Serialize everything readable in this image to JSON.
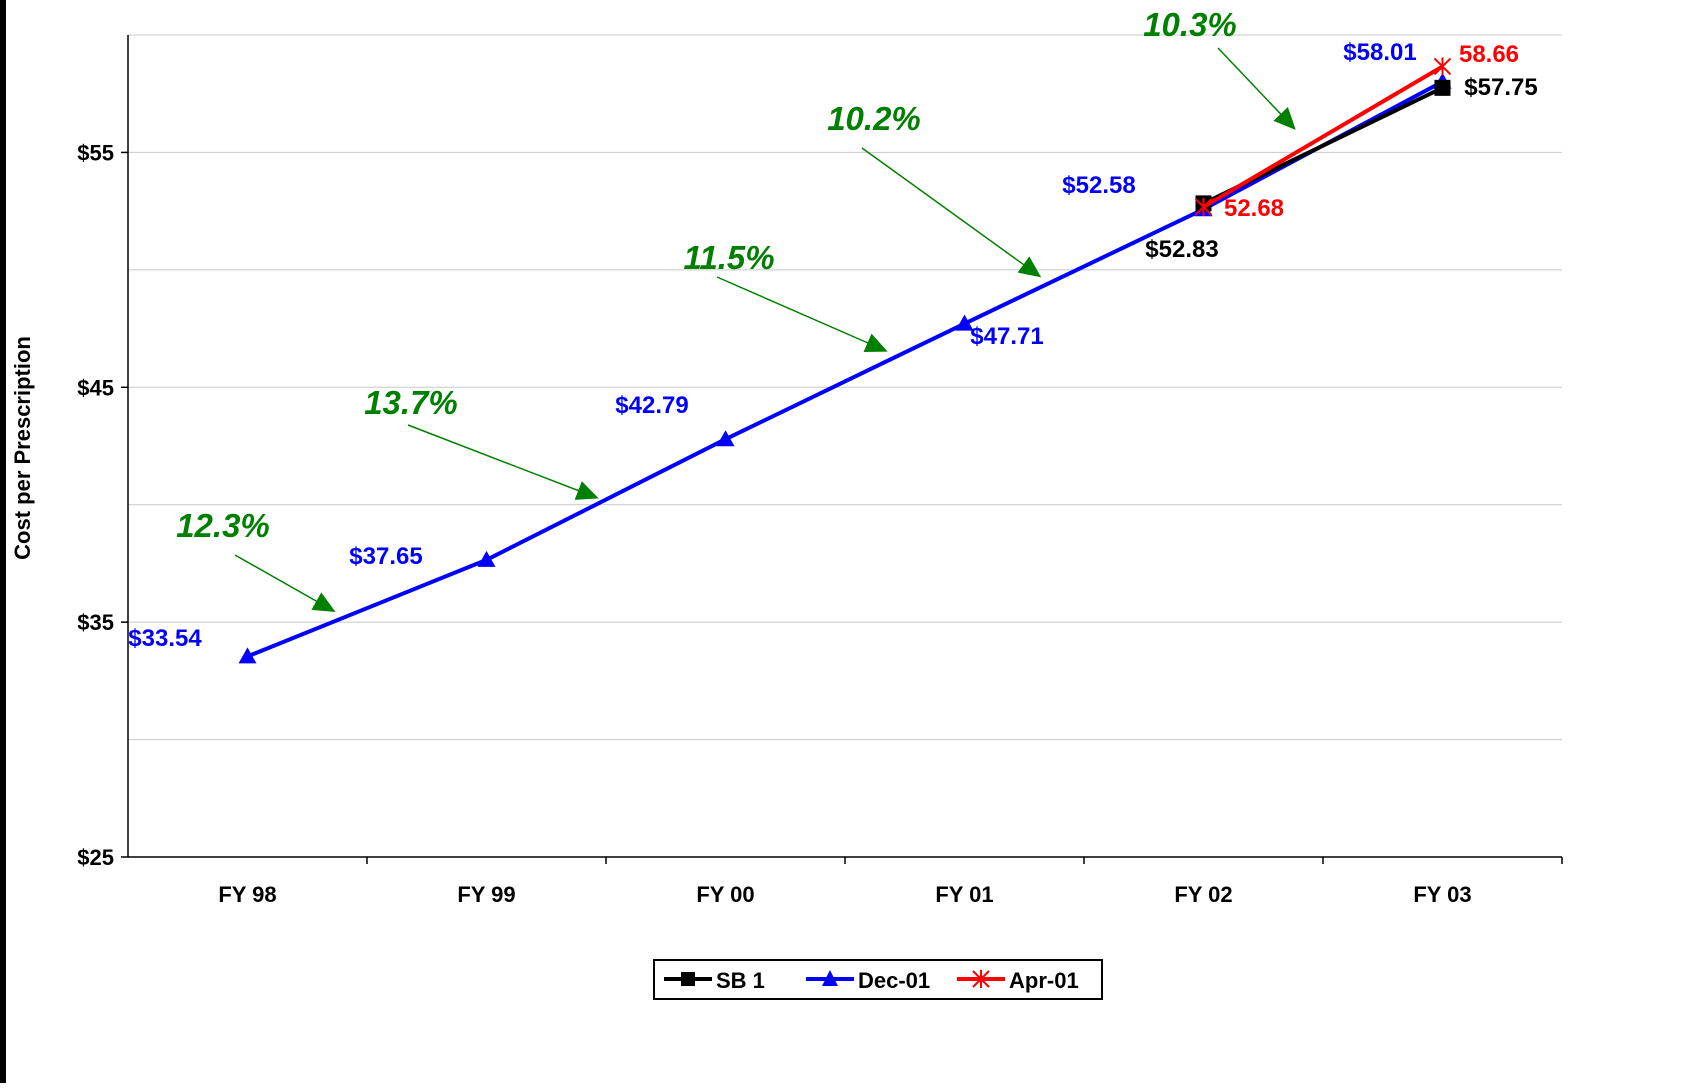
{
  "chart_data": {
    "type": "line",
    "title": "",
    "xlabel": "",
    "ylabel": "Cost per Prescription",
    "categories": [
      "FY 98",
      "FY 99",
      "FY 00",
      "FY 01",
      "FY 02",
      "FY 03"
    ],
    "ylim": [
      25,
      60
    ],
    "yticks": [
      25,
      35,
      45,
      55
    ],
    "ytick_labels": [
      "$25",
      "$35",
      "$45",
      "$55"
    ],
    "grid": true,
    "legend": "bottom-center",
    "series": [
      {
        "name": "SB 1",
        "color": "#000000",
        "marker": "square",
        "values": [
          null,
          null,
          null,
          null,
          52.83,
          57.75
        ]
      },
      {
        "name": "Dec-01",
        "color": "#0000FF",
        "marker": "triangle",
        "values": [
          33.54,
          37.65,
          42.79,
          47.71,
          52.58,
          58.01
        ]
      },
      {
        "name": "Apr-01",
        "color": "#FF0000",
        "marker": "asterisk",
        "values": [
          null,
          null,
          null,
          null,
          52.68,
          58.66
        ]
      }
    ],
    "data_labels": {
      "sb1": [
        "$52.83",
        "$57.75"
      ],
      "dec01": [
        "$33.54",
        "$37.65",
        "$42.79",
        "$47.71",
        "$52.58",
        "$58.01"
      ],
      "apr01": [
        "52.68",
        "58.66"
      ]
    },
    "annotations": {
      "growth_labels": [
        "12.3%",
        "13.7%",
        "11.5%",
        "10.2%",
        "10.3%"
      ],
      "annotation_color": "#008000"
    }
  }
}
